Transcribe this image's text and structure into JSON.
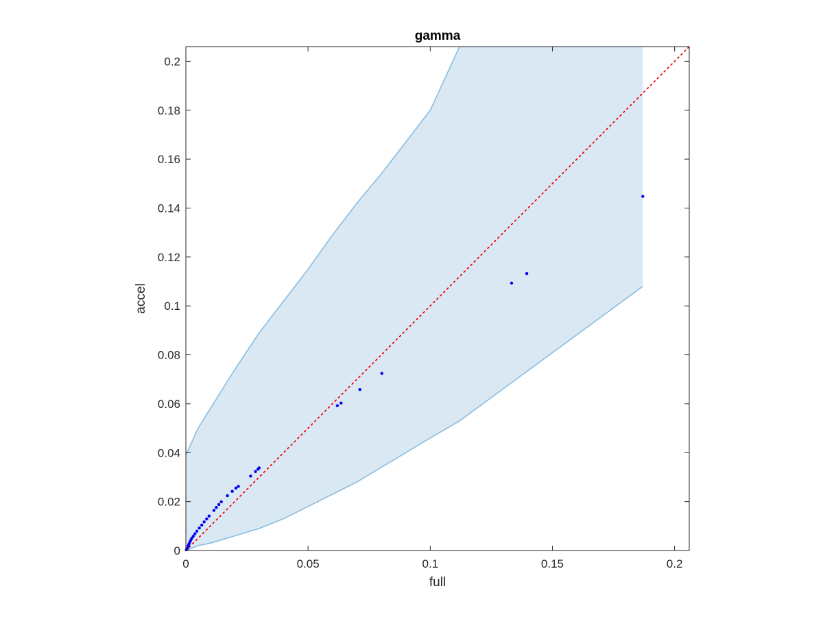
{
  "chart_data": {
    "type": "scatter",
    "title": "gamma",
    "xlabel": "full",
    "ylabel": "accel",
    "xlim": [
      0,
      0.206
    ],
    "ylim": [
      0,
      0.206
    ],
    "grid": false,
    "box": true,
    "x_ticks": [
      0,
      0.05,
      0.1,
      0.15,
      0.2
    ],
    "x_tick_labels": [
      "0",
      "0.05",
      "0.1",
      "0.15",
      "0.2"
    ],
    "y_ticks": [
      0,
      0.02,
      0.04,
      0.06,
      0.08,
      0.1,
      0.12,
      0.14,
      0.16,
      0.18,
      0.2
    ],
    "y_tick_labels": [
      "0",
      "0.02",
      "0.04",
      "0.06",
      "0.08",
      "0.1",
      "0.12",
      "0.14",
      "0.16",
      "0.18",
      "0.2"
    ],
    "colors": {
      "points": "#0000ee",
      "reference_line": "#ee0000",
      "band_fill": "#dae8f4",
      "band_edge": "#86bde2"
    },
    "reference_line": {
      "style": "dotted",
      "from": [
        0,
        0
      ],
      "to": [
        0.206,
        0.206
      ]
    },
    "band": {
      "x": [
        0,
        0.005,
        0.01,
        0.02,
        0.03,
        0.04,
        0.05,
        0.06,
        0.07,
        0.08,
        0.09,
        0.1,
        0.112,
        0.187
      ],
      "upper": [
        0.039,
        0.05,
        0.058,
        0.074,
        0.089,
        0.102,
        0.115,
        0.129,
        0.142,
        0.154,
        0.167,
        0.18,
        0.206,
        0.206
      ],
      "lower": [
        0,
        0.002,
        0.003,
        0.006,
        0.009,
        0.013,
        0.018,
        0.023,
        0.028,
        0.034,
        0.04,
        0.046,
        0.053,
        0.108
      ]
    },
    "series": [
      {
        "points": [
          [
            0.0002,
            0.0003
          ],
          [
            0.0005,
            0.0008
          ],
          [
            0.0008,
            0.0013
          ],
          [
            0.001,
            0.002
          ],
          [
            0.0013,
            0.0027
          ],
          [
            0.0016,
            0.0034
          ],
          [
            0.002,
            0.0042
          ],
          [
            0.0024,
            0.005
          ],
          [
            0.003,
            0.0058
          ],
          [
            0.0037,
            0.0068
          ],
          [
            0.0045,
            0.0079
          ],
          [
            0.0055,
            0.0092
          ],
          [
            0.0065,
            0.0104
          ],
          [
            0.0075,
            0.0117
          ],
          [
            0.0085,
            0.0129
          ],
          [
            0.0095,
            0.0141
          ],
          [
            0.0115,
            0.0164
          ],
          [
            0.0125,
            0.0176
          ],
          [
            0.0135,
            0.0188
          ],
          [
            0.0145,
            0.0199
          ],
          [
            0.017,
            0.0224
          ],
          [
            0.019,
            0.0242
          ],
          [
            0.0205,
            0.0255
          ],
          [
            0.0215,
            0.0262
          ],
          [
            0.0265,
            0.0304
          ],
          [
            0.0285,
            0.0323
          ],
          [
            0.0295,
            0.0332
          ],
          [
            0.03,
            0.0338
          ],
          [
            0.062,
            0.0592
          ],
          [
            0.0635,
            0.0603
          ],
          [
            0.0712,
            0.0658
          ],
          [
            0.0802,
            0.0724
          ],
          [
            0.1333,
            0.1093
          ],
          [
            0.1395,
            0.1132
          ],
          [
            0.187,
            0.1448
          ]
        ]
      }
    ]
  }
}
